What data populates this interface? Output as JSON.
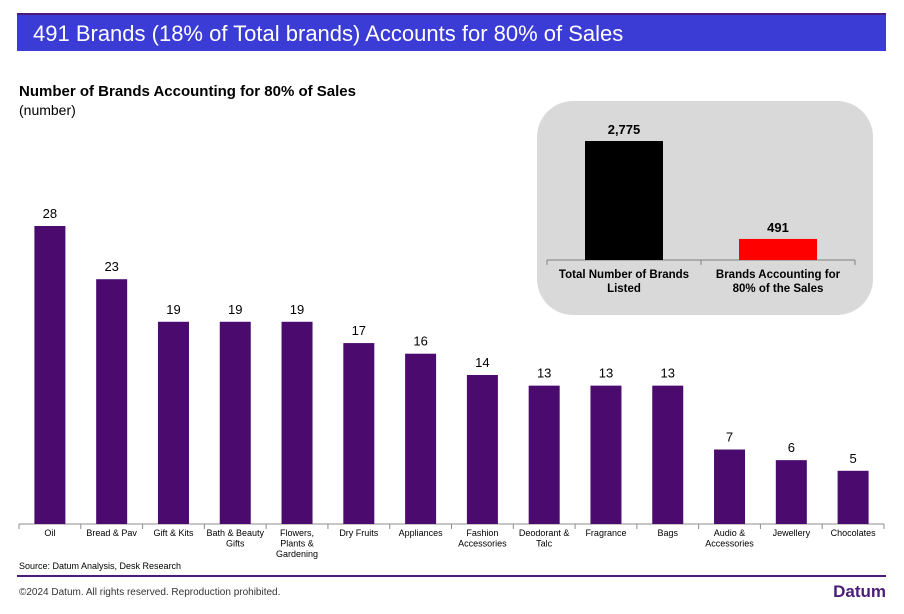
{
  "banner": {
    "title": "491 Brands (18% of Total brands) Accounts for 80% of Sales"
  },
  "chart_title": "Number of Brands Accounting for 80% of Sales",
  "chart_subtitle": "(number)",
  "chart_data": [
    {
      "type": "bar",
      "title": "Number of Brands Accounting for 80% of Sales",
      "subtitle": "(number)",
      "categories": [
        "Oil",
        "Bread & Pav",
        "Gift & Kits",
        "Bath & Beauty Gifts",
        "Flowers, Plants & Gardening",
        "Dry Fruits",
        "Appliances",
        "Fashion Accessories",
        "Deodorant & Talc",
        "Fragrance",
        "Bags",
        "Audio & Accessories",
        "Jewellery",
        "Chocolates"
      ],
      "category_lines": [
        [
          "Oil"
        ],
        [
          "Bread & Pav"
        ],
        [
          "Gift & Kits"
        ],
        [
          "Bath & Beauty",
          "Gifts"
        ],
        [
          "Flowers,",
          "Plants &",
          "Gardening"
        ],
        [
          "Dry Fruits"
        ],
        [
          "Appliances"
        ],
        [
          "Fashion",
          "Accessories"
        ],
        [
          "Deodorant &",
          "Talc"
        ],
        [
          "Fragrance"
        ],
        [
          "Bags"
        ],
        [
          "Audio &",
          "Accessories"
        ],
        [
          "Jewellery"
        ],
        [
          "Chocolates"
        ]
      ],
      "values": [
        28,
        23,
        19,
        19,
        19,
        17,
        16,
        14,
        13,
        13,
        13,
        7,
        6,
        5
      ],
      "ylim": [
        0,
        28
      ],
      "bar_color": "#4b0a6e",
      "grid": false
    },
    {
      "type": "bar",
      "categories": [
        "Total Number of Brands Listed",
        "Brands Accounting for 80% of the Sales"
      ],
      "category_lines": [
        [
          "Total Number of Brands",
          "Listed"
        ],
        [
          "Brands Accounting for",
          "80% of the Sales"
        ]
      ],
      "values": [
        2775,
        491
      ],
      "value_labels": [
        "2,775",
        "491"
      ],
      "colors": [
        "#000000",
        "#ff0000"
      ],
      "ylim": [
        0,
        2775
      ],
      "background": "#d9d9d9",
      "grid": false
    }
  ],
  "source": "Source: Datum Analysis, Desk Research",
  "footer": {
    "copyright": "©2024 Datum. All rights reserved. Reproduction prohibited.",
    "logo": "Datum"
  },
  "colors": {
    "banner": "#3b3bd6",
    "accent": "#4b1d78"
  }
}
